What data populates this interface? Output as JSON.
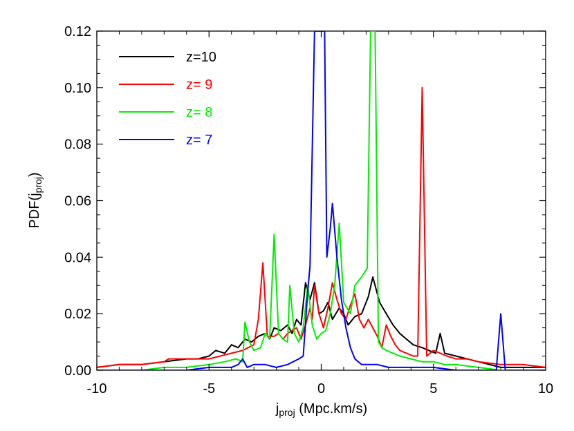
{
  "chart_data": {
    "type": "line",
    "title": "",
    "xlabel": {
      "base": "j",
      "sub": "proj",
      "rest": " (Mpc.km/s)"
    },
    "ylabel": {
      "base": "PDF(j",
      "sub": "proj",
      "rest": ")"
    },
    "xlim": [
      -10,
      10
    ],
    "ylim": [
      0,
      0.12
    ],
    "xticks": [
      -10,
      -5,
      0,
      5,
      10
    ],
    "xtick_labels": [
      "-10",
      "-5",
      "0",
      "5",
      "10"
    ],
    "yticks": [
      0,
      0.02,
      0.04,
      0.06,
      0.08,
      0.1,
      0.12
    ],
    "ytick_labels": [
      "0.00",
      "0.02",
      "0.04",
      "0.06",
      "0.08",
      "0.10",
      "0.12"
    ],
    "grid": false,
    "legend_position": "top-left",
    "series": [
      {
        "name": "z=10",
        "color": "#000000",
        "points": [
          [
            -10,
            0.001
          ],
          [
            -9,
            0.002
          ],
          [
            -8,
            0.002
          ],
          [
            -7,
            0.003
          ],
          [
            -6,
            0.004
          ],
          [
            -5.5,
            0.004
          ],
          [
            -5,
            0.005
          ],
          [
            -4.7,
            0.007
          ],
          [
            -4.3,
            0.006
          ],
          [
            -4,
            0.009
          ],
          [
            -3.7,
            0.008
          ],
          [
            -3.4,
            0.011
          ],
          [
            -3.1,
            0.01
          ],
          [
            -2.8,
            0.012
          ],
          [
            -2.5,
            0.013
          ],
          [
            -2.3,
            0.011
          ],
          [
            -2.1,
            0.015
          ],
          [
            -1.8,
            0.014
          ],
          [
            -1.5,
            0.016
          ],
          [
            -1.3,
            0.013
          ],
          [
            -1.1,
            0.018
          ],
          [
            -0.9,
            0.016
          ],
          [
            -0.7,
            0.031
          ],
          [
            -0.5,
            0.025
          ],
          [
            -0.3,
            0.031
          ],
          [
            -0.1,
            0.02
          ],
          [
            0.1,
            0.021
          ],
          [
            0.3,
            0.024
          ],
          [
            0.5,
            0.018
          ],
          [
            0.8,
            0.022
          ],
          [
            1,
            0.02
          ],
          [
            1.2,
            0.016
          ],
          [
            1.5,
            0.019
          ],
          [
            1.8,
            0.02
          ],
          [
            2.1,
            0.026
          ],
          [
            2.3,
            0.033
          ],
          [
            2.6,
            0.024
          ],
          [
            2.9,
            0.02
          ],
          [
            3.2,
            0.016
          ],
          [
            3.5,
            0.013
          ],
          [
            3.8,
            0.011
          ],
          [
            4.1,
            0.009
          ],
          [
            4.5,
            0.008
          ],
          [
            4.8,
            0.007
          ],
          [
            5.1,
            0.006
          ],
          [
            5.3,
            0.013
          ],
          [
            5.5,
            0.006
          ],
          [
            6,
            0.005
          ],
          [
            6.5,
            0.004
          ],
          [
            7,
            0.003
          ],
          [
            7.5,
            0.002
          ],
          [
            8,
            0.001
          ],
          [
            9,
            0.001
          ],
          [
            10,
            0.001
          ]
        ]
      },
      {
        "name": "z= 9",
        "color": "#ff0000",
        "points": [
          [
            -10,
            0.001
          ],
          [
            -9,
            0.002
          ],
          [
            -8,
            0.002
          ],
          [
            -7,
            0.003
          ],
          [
            -6.8,
            0.004
          ],
          [
            -6,
            0.004
          ],
          [
            -5,
            0.004
          ],
          [
            -4.5,
            0.005
          ],
          [
            -4,
            0.006
          ],
          [
            -3.5,
            0.007
          ],
          [
            -3,
            0.009
          ],
          [
            -2.8,
            0.018
          ],
          [
            -2.6,
            0.038
          ],
          [
            -2.4,
            0.012
          ],
          [
            -2.1,
            0.012
          ],
          [
            -1.9,
            0.013
          ],
          [
            -1.7,
            0.011
          ],
          [
            -1.5,
            0.013
          ],
          [
            -1.3,
            0.014
          ],
          [
            -1.1,
            0.015
          ],
          [
            -0.9,
            0.011
          ],
          [
            -0.7,
            0.016
          ],
          [
            -0.5,
            0.022
          ],
          [
            -0.4,
            0.018
          ],
          [
            -0.3,
            0.03
          ],
          [
            -0.1,
            0.02
          ],
          [
            0.1,
            0.015
          ],
          [
            0.3,
            0.022
          ],
          [
            0.5,
            0.031
          ],
          [
            0.7,
            0.025
          ],
          [
            0.9,
            0.02
          ],
          [
            1.1,
            0.018
          ],
          [
            1.3,
            0.023
          ],
          [
            1.5,
            0.027
          ],
          [
            1.7,
            0.018
          ],
          [
            1.9,
            0.015
          ],
          [
            2.1,
            0.018
          ],
          [
            2.3,
            0.015
          ],
          [
            2.5,
            0.012
          ],
          [
            2.7,
            0.008
          ],
          [
            2.9,
            0.016
          ],
          [
            3.1,
            0.012
          ],
          [
            3.3,
            0.009
          ],
          [
            3.5,
            0.007
          ],
          [
            3.8,
            0.006
          ],
          [
            4.1,
            0.005
          ],
          [
            4.3,
            0.005
          ],
          [
            4.5,
            0.1
          ],
          [
            4.7,
            0.005
          ],
          [
            5,
            0.007
          ],
          [
            5.3,
            0.006
          ],
          [
            5.6,
            0.005
          ],
          [
            6,
            0.004
          ],
          [
            6.5,
            0.004
          ],
          [
            7,
            0.003
          ],
          [
            8,
            0.002
          ],
          [
            9,
            0.002
          ],
          [
            10,
            0.001
          ]
        ]
      },
      {
        "name": "z= 8",
        "color": "#00ee00",
        "points": [
          [
            -10,
            0
          ],
          [
            -8,
            0
          ],
          [
            -7,
            0.001
          ],
          [
            -6,
            0.001
          ],
          [
            -5,
            0.002
          ],
          [
            -4.3,
            0.003
          ],
          [
            -3.8,
            0.004
          ],
          [
            -3.5,
            0.003
          ],
          [
            -3.4,
            0.017
          ],
          [
            -3.2,
            0.01
          ],
          [
            -3,
            0.007
          ],
          [
            -2.7,
            0.008
          ],
          [
            -2.5,
            0.013
          ],
          [
            -2.3,
            0.011
          ],
          [
            -2.1,
            0.048
          ],
          [
            -1.9,
            0.013
          ],
          [
            -1.7,
            0.011
          ],
          [
            -1.5,
            0.01
          ],
          [
            -1.4,
            0.03
          ],
          [
            -1.2,
            0.013
          ],
          [
            -1,
            0.01
          ],
          [
            -0.8,
            0.015
          ],
          [
            -0.6,
            0.03
          ],
          [
            -0.4,
            0.016
          ],
          [
            -0.2,
            0.011
          ],
          [
            0,
            0.013
          ],
          [
            0.2,
            0.014
          ],
          [
            0.4,
            0.02
          ],
          [
            0.6,
            0.03
          ],
          [
            0.8,
            0.052
          ],
          [
            1,
            0.024
          ],
          [
            1.3,
            0.02
          ],
          [
            1.5,
            0.03
          ],
          [
            1.8,
            0.033
          ],
          [
            2.05,
            0.036
          ],
          [
            2.2,
            0.12
          ],
          [
            2.4,
            0.12
          ],
          [
            2.55,
            0.01
          ],
          [
            2.7,
            0.008
          ],
          [
            2.9,
            0.007
          ],
          [
            3.2,
            0.006
          ],
          [
            3.5,
            0.005
          ],
          [
            4,
            0.004
          ],
          [
            4.5,
            0.003
          ],
          [
            5,
            0.003
          ],
          [
            5.5,
            0.002
          ],
          [
            6,
            0.002
          ],
          [
            7,
            0.001
          ],
          [
            8,
            0
          ],
          [
            10,
            0
          ]
        ]
      },
      {
        "name": "z= 7",
        "color": "#0000ff",
        "points": [
          [
            -10,
            0
          ],
          [
            -8,
            0
          ],
          [
            -6,
            0
          ],
          [
            -5,
            0.001
          ],
          [
            -4,
            0.001
          ],
          [
            -3.7,
            0.002
          ],
          [
            -3.5,
            0.004
          ],
          [
            -3.3,
            0.001
          ],
          [
            -3,
            0.002
          ],
          [
            -2.5,
            0.002
          ],
          [
            -2,
            0.001
          ],
          [
            -1.5,
            0.002
          ],
          [
            -1,
            0.004
          ],
          [
            -0.8,
            0.005
          ],
          [
            -0.6,
            0.028
          ],
          [
            -0.5,
            0.037
          ],
          [
            -0.3,
            0.12
          ],
          [
            -0.2,
            0.12
          ],
          [
            -0.05,
            0.12
          ],
          [
            0.05,
            0.12
          ],
          [
            0.15,
            0.12
          ],
          [
            0.25,
            0.04
          ],
          [
            0.4,
            0.05
          ],
          [
            0.5,
            0.059
          ],
          [
            0.7,
            0.04
          ],
          [
            0.9,
            0.025
          ],
          [
            1.1,
            0.015
          ],
          [
            1.3,
            0.008
          ],
          [
            1.5,
            0.004
          ],
          [
            1.8,
            0.002
          ],
          [
            2.1,
            0.002
          ],
          [
            2.5,
            0.002
          ],
          [
            3,
            0.001
          ],
          [
            4,
            0.001
          ],
          [
            5,
            0.001
          ],
          [
            6,
            0
          ],
          [
            7,
            0
          ],
          [
            7.8,
            0
          ],
          [
            8,
            0.02
          ],
          [
            8.2,
            0
          ],
          [
            9,
            0
          ],
          [
            10,
            0
          ]
        ]
      }
    ]
  }
}
